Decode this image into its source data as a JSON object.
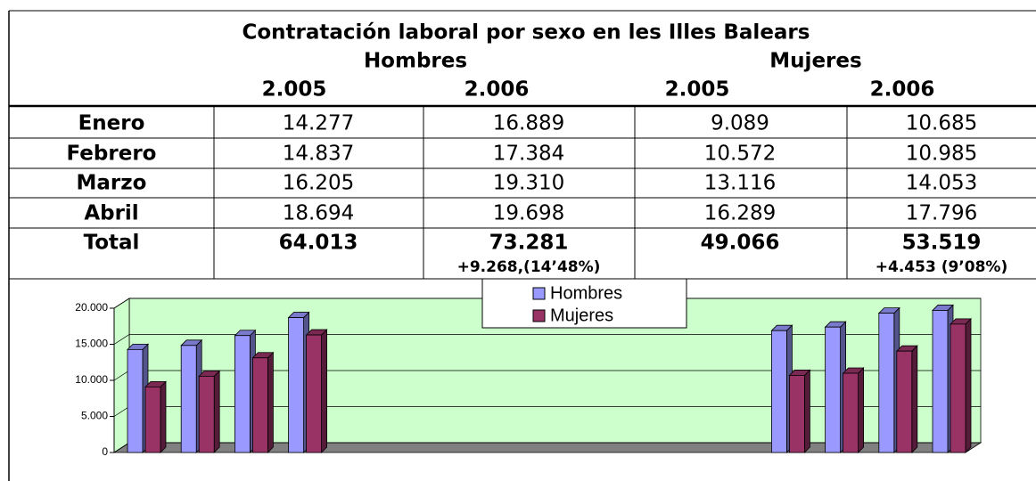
{
  "table": {
    "title": "Contratación laboral por sexo en les Illes Balears",
    "groups": [
      "Hombres",
      "Mujeres"
    ],
    "years": [
      "2.005",
      "2.006",
      "2.005",
      "2.006"
    ],
    "rows": [
      [
        "Enero",
        "14.277",
        "16.889",
        "9.089",
        "10.685"
      ],
      [
        "Febrero",
        "14.837",
        "17.384",
        "10.572",
        "10.985"
      ],
      [
        "Marzo",
        "16.205",
        "19.310",
        "13.116",
        "14.053"
      ],
      [
        "Abril",
        "18.694",
        "19.698",
        "16.289",
        "17.796"
      ]
    ],
    "total": {
      "label": "Total",
      "values": [
        "64.013",
        "73.281",
        "49.066",
        "53.519"
      ],
      "changes": [
        "+9.268,(14’48%)",
        "+4.453 (9’08%)"
      ]
    }
  },
  "chart_data": {
    "type": "bar",
    "categories": [
      null,
      null,
      null,
      null,
      null,
      null,
      null,
      null
    ],
    "series": [
      {
        "name": "Hombres",
        "color": "#9999ff",
        "values": [
          14277,
          14837,
          16205,
          18694,
          16889,
          17384,
          19310,
          19698
        ]
      },
      {
        "name": "Mujeres",
        "color": "#993366",
        "values": [
          9089,
          10572,
          13116,
          16289,
          10685,
          10985,
          14053,
          17796
        ]
      }
    ],
    "ylim": [
      0,
      20000
    ],
    "yticks": [
      0,
      {
        "value": 5000,
        "label": "5.000"
      },
      {
        "value": 10000,
        "label": "10.000"
      },
      {
        "value": 15000,
        "label": "15.000"
      },
      {
        "value": 20000,
        "label": "20.000"
      }
    ],
    "grid": true
  }
}
